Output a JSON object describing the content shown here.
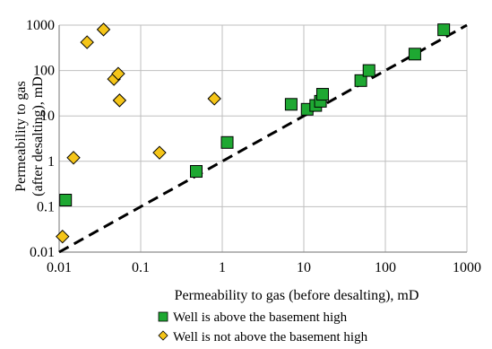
{
  "chart_data": {
    "type": "scatter",
    "title": "",
    "xlabel": "Permeability to gas (before desalting), mD",
    "ylabel_lines": [
      "Permeability to gas",
      "(after desalting), mD"
    ],
    "x_scale": "log",
    "y_scale": "log",
    "xlim": [
      0.01,
      1000
    ],
    "ylim": [
      0.01,
      1000
    ],
    "x_ticks": [
      0.01,
      0.1,
      1,
      10,
      100,
      1000
    ],
    "x_tick_labels": [
      "0.01",
      "0.1",
      "1",
      "10",
      "100",
      "1000"
    ],
    "y_ticks": [
      0.01,
      0.1,
      1,
      10,
      100,
      1000
    ],
    "y_tick_labels": [
      "0.01",
      "0.1",
      "1",
      "10",
      "100",
      "1000"
    ],
    "grid": true,
    "legend_position": "bottom",
    "reference_line": {
      "style": "dashed",
      "color": "#000000",
      "from": [
        0.01,
        0.01
      ],
      "to": [
        1000,
        1000
      ]
    },
    "series": [
      {
        "name": "Well is above the basement high",
        "marker": "square",
        "color": "#1ea832",
        "points": [
          {
            "x": 0.012,
            "y": 0.14
          },
          {
            "x": 0.48,
            "y": 0.6
          },
          {
            "x": 1.15,
            "y": 2.6
          },
          {
            "x": 7,
            "y": 18
          },
          {
            "x": 11,
            "y": 14
          },
          {
            "x": 14,
            "y": 17
          },
          {
            "x": 16,
            "y": 21
          },
          {
            "x": 17,
            "y": 30
          },
          {
            "x": 50,
            "y": 60
          },
          {
            "x": 63,
            "y": 100
          },
          {
            "x": 230,
            "y": 230
          },
          {
            "x": 520,
            "y": 790
          }
        ]
      },
      {
        "name": "Well is not above the basement high",
        "marker": "diamond",
        "color": "#f5c518",
        "points": [
          {
            "x": 0.011,
            "y": 0.022
          },
          {
            "x": 0.015,
            "y": 1.2
          },
          {
            "x": 0.022,
            "y": 420
          },
          {
            "x": 0.035,
            "y": 800
          },
          {
            "x": 0.047,
            "y": 65
          },
          {
            "x": 0.053,
            "y": 85
          },
          {
            "x": 0.055,
            "y": 22
          },
          {
            "x": 0.17,
            "y": 1.55
          },
          {
            "x": 0.8,
            "y": 24
          }
        ]
      }
    ]
  }
}
